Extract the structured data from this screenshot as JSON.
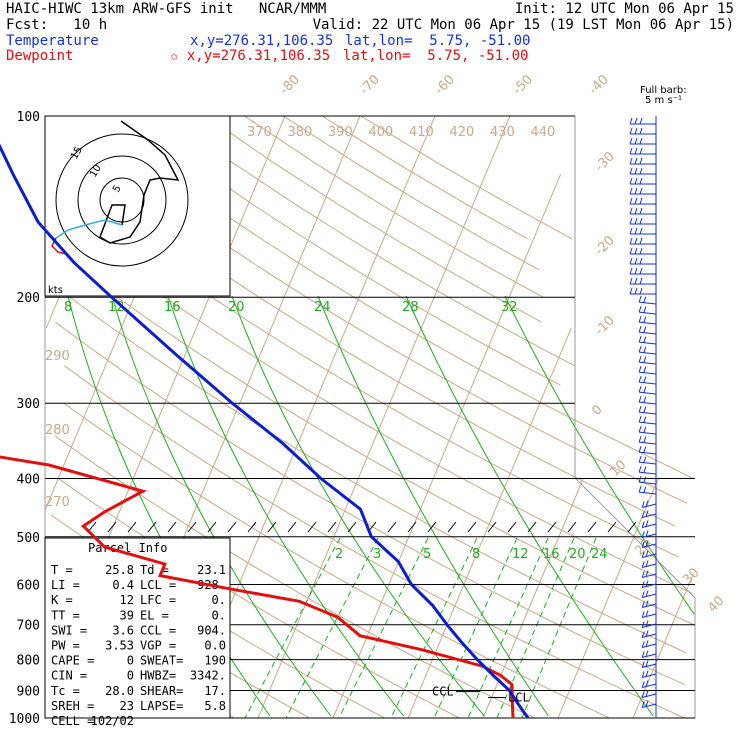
{
  "header": {
    "line1_left": "HAIC-HIWC 13km ARW-GFS init   NCAR/MMM",
    "line1_right": "Init: 12 UTC Mon 06 Apr 15",
    "line2_left": "Fcst:   10 h",
    "line2_right": "Valid: 22 UTC Mon 06 Apr 15 (19 LST Mon 06 Apr 15)",
    "temp_label": "Temperature",
    "temp_coords": "x,y=276.31,106.35",
    "temp_latlon": "lat,lon=  5.75, -51.00",
    "dew_label": "Dewpoint",
    "dew_coords": "✩ x,y=276.31,106.35",
    "dew_latlon": "lat,lon=  5.75, -51.00"
  },
  "colors": {
    "temperature": "#0a1ecc",
    "dewpoint": "#e01010",
    "isotherm": "#c8aa88",
    "theta": "#c8aa88",
    "moist_adiabat": "#22aa22",
    "mixing_ratio": "#22aa22",
    "hodo_upper": "#000000",
    "hodo_lower": "#33aadd",
    "hodo_lowest": "#e01010"
  },
  "barb_legend": {
    "line1": "Full barb:",
    "line2": "5 m s⁻¹"
  },
  "chart_data": {
    "type": "line",
    "pressure_levels": [
      100,
      200,
      300,
      400,
      500,
      600,
      700,
      800,
      900,
      1000
    ],
    "pressure_labels": [
      "100",
      "200",
      "300",
      "400",
      "500",
      "600",
      "700",
      "800",
      "900",
      "1000"
    ],
    "isotherm_labels": [
      "-80",
      "-70",
      "-60",
      "-50",
      "-40",
      "-30",
      "-20",
      "-10",
      "0",
      "10",
      "20",
      "30",
      "40"
    ],
    "theta_labels": [
      "370",
      "380",
      "390",
      "400",
      "410",
      "420",
      "430",
      "440"
    ],
    "theta_lower_labels": [
      "290",
      "280",
      "270"
    ],
    "moist_adiabat_labels": [
      "8",
      "12",
      "16",
      "20",
      "24",
      "28",
      "32"
    ],
    "mixing_ratio_labels": [
      "2",
      "3",
      "5",
      "8",
      "12",
      "16",
      "20",
      "24"
    ],
    "series": [
      {
        "name": "Temperature",
        "points": [
          [
            100,
            -79
          ],
          [
            110,
            -77
          ],
          [
            125,
            -73
          ],
          [
            150,
            -67
          ],
          [
            175,
            -60
          ],
          [
            200,
            -53
          ],
          [
            250,
            -41
          ],
          [
            300,
            -31
          ],
          [
            350,
            -22
          ],
          [
            400,
            -15
          ],
          [
            450,
            -8
          ],
          [
            500,
            -5
          ],
          [
            550,
            0
          ],
          [
            600,
            3
          ],
          [
            650,
            7
          ],
          [
            700,
            10
          ],
          [
            750,
            13
          ],
          [
            800,
            16
          ],
          [
            850,
            19
          ],
          [
            900,
            22
          ],
          [
            950,
            24
          ],
          [
            1000,
            26
          ]
        ]
      },
      {
        "name": "Dewpoint",
        "points": [
          [
            100,
            -95
          ],
          [
            115,
            -94
          ],
          [
            140,
            -94
          ],
          [
            170,
            -93
          ],
          [
            190,
            -93
          ],
          [
            205,
            -91
          ],
          [
            215,
            -86
          ],
          [
            230,
            -71
          ],
          [
            250,
            -69
          ],
          [
            275,
            -71
          ],
          [
            305,
            -76
          ],
          [
            330,
            -79
          ],
          [
            345,
            -74
          ],
          [
            380,
            -52
          ],
          [
            420,
            -38
          ],
          [
            455,
            -42
          ],
          [
            480,
            -44
          ],
          [
            520,
            -40
          ],
          [
            555,
            -31
          ],
          [
            580,
            -31
          ],
          [
            610,
            -21
          ],
          [
            640,
            -11
          ],
          [
            680,
            -5
          ],
          [
            730,
            -1
          ],
          [
            770,
            8
          ],
          [
            820,
            17
          ],
          [
            850,
            20
          ],
          [
            880,
            22
          ],
          [
            940,
            23
          ],
          [
            1000,
            24
          ]
        ]
      }
    ]
  },
  "hodograph": {
    "unit_label": "kts",
    "ring_labels": [
      "5",
      "10",
      "15"
    ]
  },
  "parcel": {
    "title": "Parcel Info",
    "rows": [
      [
        "T   =",
        "25.8",
        "Td =",
        "23.1"
      ],
      [
        "LI  =",
        "0.4",
        "LCL =",
        "928."
      ],
      [
        "K   =",
        "12",
        "LFC =",
        "0."
      ],
      [
        "TT  =",
        "39",
        "EL  =",
        "0."
      ],
      [
        "SWI =",
        "3.6",
        "CCL =",
        "904."
      ],
      [
        "PW  =",
        "3.53",
        "VGP =",
        "0.0"
      ],
      [
        "CAPE =",
        "0",
        "SWEAT=",
        "190"
      ],
      [
        "CIN  =",
        "0",
        "HWBZ=",
        "3342."
      ],
      [
        "Tc  =",
        "28.0",
        "SHEAR=",
        "17."
      ],
      [
        "SREH =",
        "23",
        "LAPSE=",
        "5.8"
      ],
      [
        "CELL =",
        "102/02",
        "",
        ""
      ]
    ]
  },
  "markers": {
    "ccl": "CCL",
    "lcl": "LCL"
  }
}
